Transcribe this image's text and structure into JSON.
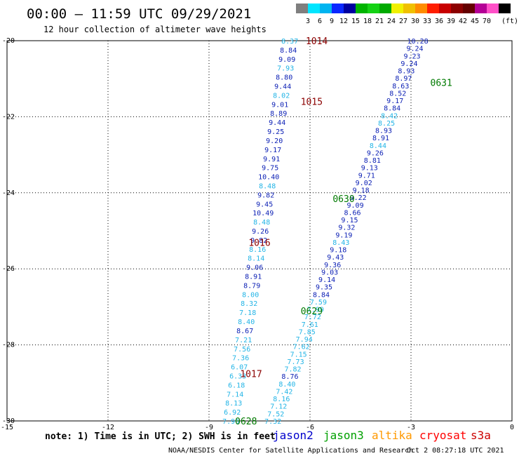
{
  "header": {
    "title": "00:00 – 11:59 UTC 09/29/2021",
    "subtitle": "12 hour collection of altimeter wave heights"
  },
  "legend": {
    "unit": "(ft)",
    "colors": [
      "#7f7f7f",
      "#00e5ff",
      "#00b4f0",
      "#0a28ff",
      "#0000a0",
      "#00b400",
      "#14d214",
      "#00aa00",
      "#f0f000",
      "#f0c000",
      "#ff8c00",
      "#ff1e00",
      "#c80000",
      "#8c0000",
      "#640000",
      "#b40096",
      "#ff50c8",
      "#000000"
    ],
    "labels": [
      "3",
      "6",
      "9",
      "12",
      "15",
      "18",
      "21",
      "24",
      "27",
      "30",
      "33",
      "36",
      "39",
      "42",
      "45",
      "70"
    ]
  },
  "footer": {
    "note": "note: 1) Time is in UTC; 2) SWH is in feet",
    "satellites": [
      {
        "name": "jason2",
        "color": "#0000cc"
      },
      {
        "name": "jason3",
        "color": "#00a000"
      },
      {
        "name": "altika",
        "color": "#ff9900"
      },
      {
        "name": "cryosat",
        "color": "#ff0000"
      },
      {
        "name": "s3a",
        "color": "#cc0000"
      }
    ],
    "credit": "NOAA/NESDIS Center for Satellite Applications and Research",
    "timestamp": "Oct  2 08:27:18 UTC 2021"
  },
  "chart_data": {
    "type": "scatter",
    "xlim": [
      -15,
      0
    ],
    "ylim": [
      -30,
      -20
    ],
    "x_ticks": [
      -15,
      -12,
      -9,
      -6,
      -3,
      0
    ],
    "y_ticks": [
      -20,
      -22,
      -24,
      -26,
      -28,
      -30
    ],
    "grid": true,
    "tracks": [
      {
        "name": "left-track",
        "start": [
          -8.35,
          -30.0
        ],
        "end": [
          -6.6,
          -20.0
        ],
        "values": [
          "7.96",
          "6.92",
          "8.13",
          "7.14",
          "6.18",
          "6.33",
          "6.07",
          "7.36",
          "7.56",
          "7.21",
          "8.67",
          "8.40",
          "7.18",
          "8.32",
          "8.00",
          "8.79",
          "8.91",
          "9.06",
          "8.14",
          "8.16",
          "9.82",
          "9.26",
          "8.48",
          "10.49",
          "9.45",
          "9.82",
          "8.48",
          "10.40",
          "9.75",
          "9.91",
          "9.17",
          "9.20",
          "9.25",
          "9.44",
          "8.89",
          "9.01",
          "8.02",
          "9.44",
          "8.80",
          "7.93",
          "9.09",
          "8.84",
          "8.37"
        ]
      },
      {
        "name": "right-track",
        "start": [
          -7.1,
          -30.0
        ],
        "end": [
          -2.8,
          -20.0
        ],
        "values": [
          "7.32",
          "7.52",
          "7.12",
          "8.16",
          "7.42",
          "8.40",
          "8.76",
          "7.82",
          "7.73",
          "7.15",
          "7.62",
          "7.94",
          "7.85",
          "7.61",
          "7.72",
          "7.99",
          "7.59",
          "8.84",
          "9.35",
          "9.14",
          "9.03",
          "9.36",
          "9.43",
          "9.18",
          "8.43",
          "9.19",
          "9.32",
          "9.15",
          "8.66",
          "9.09",
          "9.22",
          "9.18",
          "9.02",
          "9.71",
          "9.13",
          "8.81",
          "9.26",
          "8.44",
          "8.91",
          "8.93",
          "8.25",
          "8.42",
          "8.84",
          "9.17",
          "8.52",
          "8.63",
          "8.97",
          "8.93",
          "9.24",
          "9.23",
          "9.24",
          "10.28"
        ]
      }
    ],
    "pressure_labels": [
      {
        "text": "1014",
        "x": -5.8,
        "y": -20.0
      },
      {
        "text": "1015",
        "x": -5.95,
        "y": -21.6
      },
      {
        "text": "1016",
        "x": -7.5,
        "y": -25.3
      },
      {
        "text": "1017",
        "x": -7.75,
        "y": -28.75
      }
    ],
    "time_labels": [
      {
        "text": "0631",
        "x": -2.1,
        "y": -21.1
      },
      {
        "text": "0630",
        "x": -5.0,
        "y": -24.15
      },
      {
        "text": "0629",
        "x": -5.95,
        "y": -27.1
      },
      {
        "text": "0628",
        "x": -7.9,
        "y": -30.0
      }
    ]
  }
}
